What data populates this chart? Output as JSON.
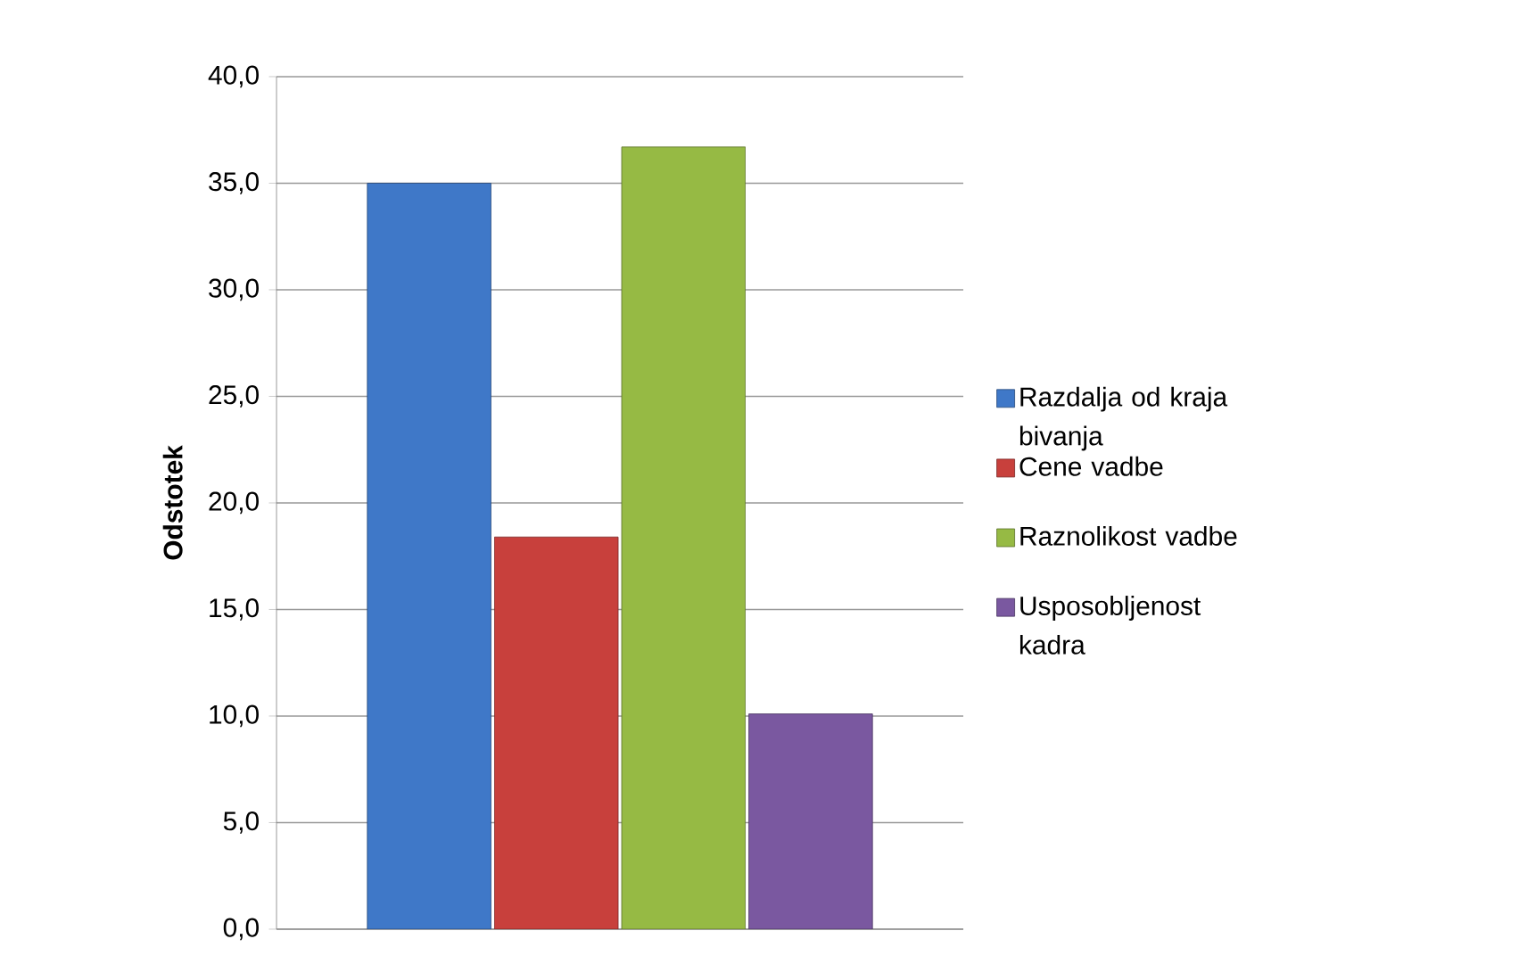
{
  "chart_data": {
    "type": "bar",
    "ylabel": "Odstotek",
    "categories": [
      null
    ],
    "series": [
      {
        "name": "Razdalja od kraja bivanja",
        "color": "#3f78c8",
        "values": [
          35.0
        ]
      },
      {
        "name": "Cene vadbe",
        "color": "#c8403c",
        "values": [
          18.4
        ]
      },
      {
        "name": "Raznolikost vadbe",
        "color": "#96ba44",
        "values": [
          36.7
        ]
      },
      {
        "name": "Usposobljenost kadra",
        "color": "#7a58a0",
        "values": [
          10.1
        ]
      }
    ],
    "ylim": [
      0,
      40
    ],
    "yticks": [
      {
        "value": 0,
        "label": "0,0"
      },
      {
        "value": 5,
        "label": "5,0"
      },
      {
        "value": 10,
        "label": "10,0"
      },
      {
        "value": 15,
        "label": "15,0"
      },
      {
        "value": 20,
        "label": "20,0"
      },
      {
        "value": 25,
        "label": "25,0"
      },
      {
        "value": 30,
        "label": "30,0"
      },
      {
        "value": 35,
        "label": "35,0"
      },
      {
        "value": 40,
        "label": "40,0"
      }
    ],
    "grid": "y",
    "legend": "right"
  }
}
